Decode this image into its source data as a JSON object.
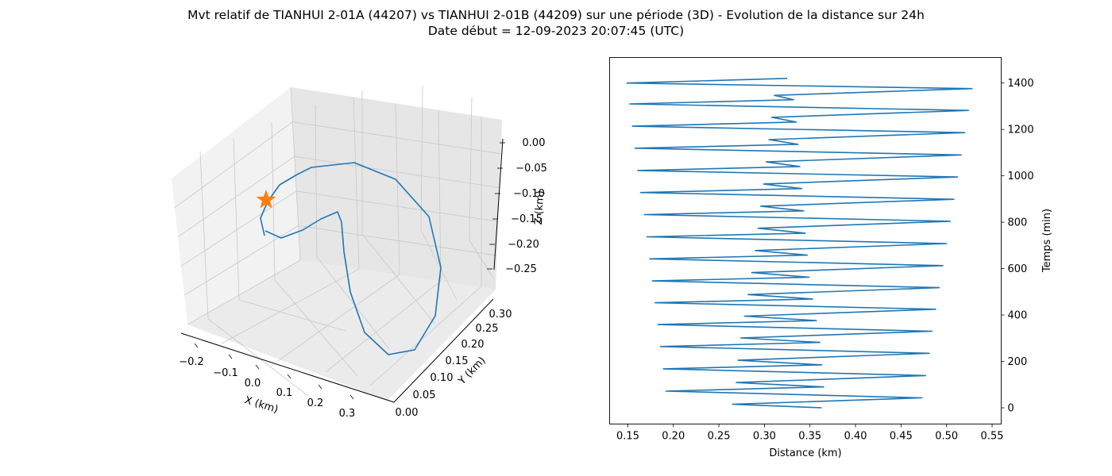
{
  "figure": {
    "title_line1": "Mvt relatif de TIANHUI 2-01A (44207) vs TIANHUI 2-01B (44209) sur une période (3D) - Evolution de la distance sur 24h",
    "title_line2": "Date début = 12-09-2023 20:07:45 (UTC)"
  },
  "colors": {
    "series": "#1f77b4",
    "marker": "#ff7f0e",
    "pane_left": "#f2f2f2",
    "pane_right": "#e6e6e6",
    "pane_floor": "#ebebeb",
    "grid": "#c8c8c8"
  },
  "chart_data": [
    {
      "type": "line3d",
      "xlabel": "X (km)",
      "ylabel": "Y (km)",
      "zlabel": "Z (km)",
      "xlim": [
        -0.25,
        0.35
      ],
      "ylim": [
        0.0,
        0.3
      ],
      "zlim": [
        -0.28,
        0.0
      ],
      "xticks": [
        "−0.2",
        "−0.1",
        "0.0",
        "0.1",
        "0.2",
        "0.3"
      ],
      "yticks": [
        "0.00",
        "0.05",
        "0.10",
        "0.15",
        "0.20",
        "0.25",
        "0.30"
      ],
      "zticks": [
        "0.00",
        "−0.05",
        "−0.10",
        "−0.15",
        "−0.20",
        "−0.25"
      ],
      "grid": true,
      "marker": {
        "shape": "star",
        "label": "start"
      }
    },
    {
      "type": "line",
      "xlabel": "Distance (km)",
      "ylabel": "Temps (min)",
      "xlim": [
        0.13,
        0.56
      ],
      "ylim": [
        -70,
        1510
      ],
      "xticks": [
        "0.15",
        "0.20",
        "0.25",
        "0.30",
        "0.35",
        "0.40",
        "0.45",
        "0.50",
        "0.55"
      ],
      "yticks": [
        "0",
        "200",
        "400",
        "600",
        "800",
        "1000",
        "1200",
        "1400"
      ],
      "yaxis_position": "right",
      "series": [
        {
          "x": [
            0.363,
            0.265,
            0.473,
            0.192,
            0.365,
            0.269,
            0.477,
            0.189,
            0.363,
            0.271,
            0.481,
            0.186,
            0.361,
            0.274,
            0.484,
            0.183,
            0.357,
            0.278,
            0.488,
            0.18,
            0.353,
            0.282,
            0.492,
            0.177,
            0.349,
            0.286,
            0.496,
            0.174,
            0.347,
            0.29,
            0.5,
            0.171,
            0.345,
            0.293,
            0.504,
            0.168,
            0.343,
            0.296,
            0.508,
            0.164,
            0.341,
            0.299,
            0.512,
            0.161,
            0.339,
            0.302,
            0.516,
            0.158,
            0.337,
            0.305,
            0.52,
            0.155,
            0.335,
            0.308,
            0.524,
            0.152,
            0.332,
            0.311,
            0.528,
            0.149,
            0.325
          ],
          "y": [
            0,
            15,
            43,
            72,
            90,
            109,
            139,
            168,
            185,
            205,
            235,
            264,
            282,
            301,
            330,
            359,
            376,
            395,
            425,
            453,
            469,
            488,
            518,
            547,
            563,
            583,
            613,
            642,
            658,
            678,
            708,
            737,
            753,
            774,
            804,
            833,
            849,
            869,
            899,
            928,
            945,
            965,
            995,
            1023,
            1040,
            1060,
            1090,
            1119,
            1136,
            1156,
            1186,
            1214,
            1232,
            1252,
            1282,
            1310,
            1328,
            1347,
            1376,
            1400,
            1420
          ]
        }
      ]
    }
  ]
}
